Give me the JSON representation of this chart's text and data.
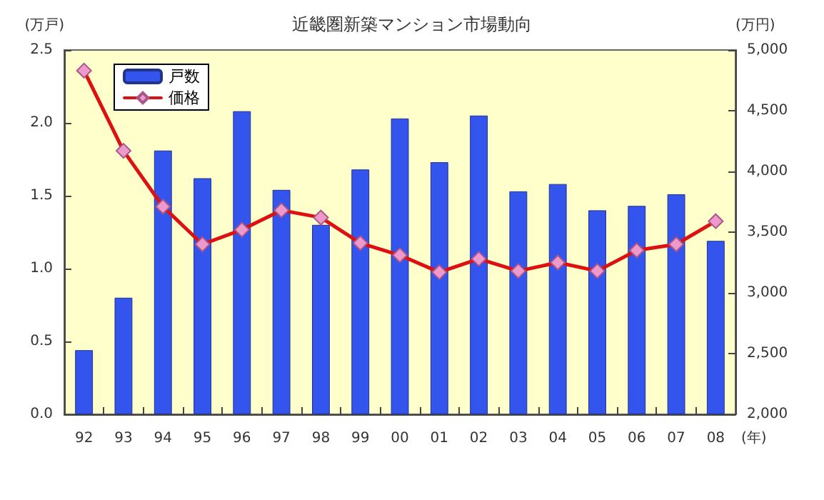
{
  "chart_data": {
    "type": "bar",
    "title": "近畿圏新築マンション市場動向",
    "ylabel": "(万戸)",
    "y2label": "(万円)",
    "xlabel": "(年)",
    "categories": [
      "92",
      "93",
      "94",
      "95",
      "96",
      "97",
      "98",
      "99",
      "00",
      "01",
      "02",
      "03",
      "04",
      "05",
      "06",
      "07",
      "08"
    ],
    "series": [
      {
        "name": "戸数",
        "color": "#3355ee",
        "values": [
          0.44,
          0.8,
          1.81,
          1.62,
          2.08,
          1.54,
          1.3,
          1.68,
          2.03,
          1.73,
          2.05,
          1.53,
          1.58,
          1.4,
          1.43,
          1.51,
          1.19
        ]
      },
      {
        "name": "価格",
        "type": "line",
        "axis": "y2",
        "color": "#dd1111",
        "marker": "diamond",
        "values": [
          4830,
          4170,
          3710,
          3400,
          3520,
          3680,
          3620,
          3410,
          3310,
          3170,
          3280,
          3180,
          3250,
          3180,
          3350,
          3400,
          3590
        ]
      }
    ],
    "ylim": [
      0,
      2.5
    ],
    "yticks": [
      {
        "value": 0,
        "label": "0.0"
      },
      {
        "value": 0.5,
        "label": "0.5"
      },
      {
        "value": 1,
        "label": "1.0"
      },
      {
        "value": 1.5,
        "label": "1.5"
      },
      {
        "value": 2,
        "label": "2.0"
      },
      {
        "value": 2.5,
        "label": "2.5"
      }
    ],
    "y2lim": [
      2000,
      5000
    ],
    "y2ticks": [
      {
        "value": 2000,
        "label": "2,000"
      },
      {
        "value": 2500,
        "label": "2,500"
      },
      {
        "value": 3000,
        "label": "3,000"
      },
      {
        "value": 3500,
        "label": "3,500"
      },
      {
        "value": 4000,
        "label": "4,000"
      },
      {
        "value": 4500,
        "label": "4,500"
      },
      {
        "value": 5000,
        "label": "5,000"
      }
    ],
    "grid": false,
    "legend": "top left"
  }
}
